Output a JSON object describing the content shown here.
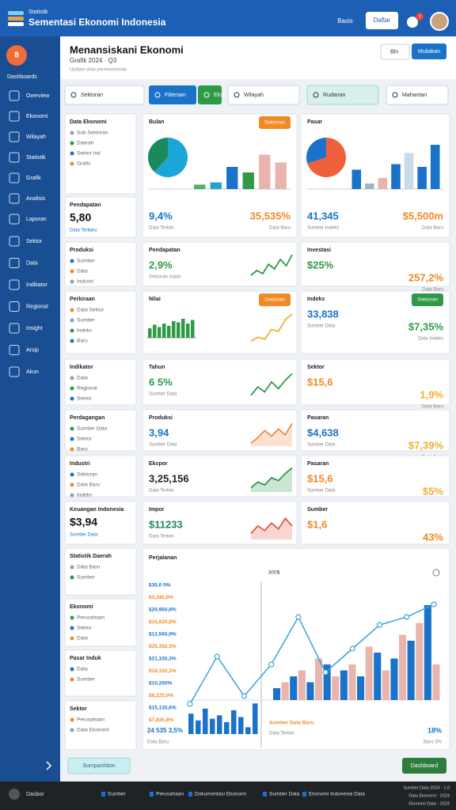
{
  "header": {
    "brand_small": "Statistik",
    "brand": "Sementasi Ekonomi Indonesia",
    "link": "Basis",
    "button": "Daftar",
    "badge": "1"
  },
  "sidebar": {
    "badge": "8",
    "section": "Dashboards",
    "items": [
      "Overview",
      "Ekonomi",
      "Wilayah",
      "Statistik",
      "Grafik",
      "Analisis",
      "Laporan",
      "Sektor",
      "Data",
      "Indikator",
      "Regional",
      "Insight",
      "Arsip",
      "Akun"
    ]
  },
  "page": {
    "title": "Menansiskani Ekonomi",
    "subtitle": "Grafik 2024 · Q3",
    "note": "Update data perekonomian",
    "dropdown": "Bln",
    "button": "Muliakan"
  },
  "filters": [
    "Sektoran",
    "Filtersan",
    "Ekst",
    "Wilayah",
    "Rudanan",
    "Mahantan"
  ],
  "left_cards": [
    {
      "title": "Data Ekonomi",
      "items": [
        "Sub Sektoran",
        "Daerah",
        "Sektor Ind",
        "Grafis"
      ]
    },
    {
      "title": "Pendapatan",
      "value": "5,80",
      "note": "Data Terbaru"
    },
    {
      "title": "Produksi",
      "items": [
        "Sumber",
        "Data",
        "Industri"
      ]
    },
    {
      "title": "Perkiraan",
      "items": [
        "Data Sektor",
        "Sumber",
        "Indeks",
        "Baru"
      ]
    },
    {
      "title": "Indikator",
      "items": [
        "Data",
        "Regional",
        "Sektor"
      ]
    },
    {
      "title": "Perdagangan",
      "items": [
        "Sumber Data",
        "Sektor",
        "Baru"
      ]
    },
    {
      "title": "Industri",
      "items": [
        "Sektoran",
        "Data Baru",
        "Indeks"
      ]
    },
    {
      "title": "Keuangan Indonesia",
      "value": "$3,94",
      "note": "Sumber Data"
    },
    {
      "title": "Statistik Daerah",
      "items": [
        "Data Baru",
        "Sumber"
      ]
    },
    {
      "title": "Ekonomi",
      "items": [
        "Perusahaan",
        "Sektor",
        "Data"
      ]
    },
    {
      "title": "Pasar Induk",
      "items": [
        "Data",
        "Sumber"
      ]
    },
    {
      "title": "Sektor",
      "items": [
        "Perusahaan",
        "Data Ekonomi"
      ]
    }
  ],
  "cards": [
    {
      "title": "Bulan",
      "button": "Sektoran",
      "button_color": "#f08a24",
      "chart": {
        "ylim": [
          0,
          100
        ],
        "pie": [
          62,
          38
        ],
        "pie_colors": [
          "#1aa6d6",
          "#1b8a5a"
        ],
        "bars": [
          8,
          12,
          40,
          30,
          62,
          48
        ],
        "bar_colors": [
          "#4caf6a",
          "#1fa6c9",
          "#1a73c8",
          "#2e9a48",
          "#e8b4ad",
          "#e8b4ad"
        ]
      },
      "value": "9,4%",
      "value_color": "#1a73c8",
      "note": "Data Terkini",
      "value2": "35,535%",
      "value2_color": "#f08a24",
      "note2": "Data Baru"
    },
    {
      "title": "Pasar",
      "chart": {
        "ylim": [
          0,
          100
        ],
        "pie": [
          70,
          30
        ],
        "pie_colors": [
          "#f0603a",
          "#1a73c8"
        ],
        "bars": [
          35,
          10,
          20,
          45,
          65,
          40,
          80
        ],
        "bar_colors": [
          "#1a73c8",
          "#9fb4c8",
          "#e8b4ad",
          "#1a73c8",
          "#c8dbe8",
          "#1a73c8",
          "#1a73c8"
        ]
      },
      "value": "41,345",
      "value_color": "#1a73c8",
      "note": "Sumber Indeks",
      "value2": "$5,500m",
      "value2_color": "#f08a24",
      "note2": "Data Baru"
    },
    {
      "title": "Pendapatan",
      "value": "2,9%",
      "value_color": "#2e9a48",
      "note": "Sektoran Indah",
      "spark": {
        "ylim": [
          0,
          100
        ],
        "values": [
          20,
          35,
          25,
          55,
          40,
          70,
          50,
          85
        ],
        "color": "#2e9a48",
        "fill": false
      }
    },
    {
      "title": "Investasi",
      "value": "$25%",
      "value_color": "#2e9a48",
      "value2": "257,2%",
      "value2_color": "#f08a24",
      "note2": "Data Baru"
    },
    {
      "title": "Nilai",
      "button": "Sektoran",
      "button_color": "#f08a24",
      "bars": {
        "ylim": [
          0,
          100
        ],
        "values": [
          40,
          55,
          45,
          60,
          50,
          70,
          65,
          80,
          60,
          75
        ],
        "color": "#2e9a48"
      },
      "spark": {
        "ylim": [
          0,
          100
        ],
        "values": [
          20,
          30,
          25,
          50,
          45,
          75,
          90
        ],
        "color": "#f0b030",
        "fill": false
      }
    },
    {
      "title": "Indeks",
      "button": "Sektoran",
      "button_color": "#2e9a48",
      "value": "33,838",
      "value_color": "#1a73c8",
      "note": "Sumber Data",
      "value2": "$7,35%",
      "value2_color": "#2e9a48",
      "note2": "Data Indeks"
    },
    {
      "title": "Tahun",
      "value": "6 5%",
      "value_color": "#2e9a48",
      "note": "Sumber Data",
      "spark": {
        "ylim": [
          0,
          100
        ],
        "values": [
          15,
          40,
          25,
          55,
          35,
          60,
          80
        ],
        "color": "#2e9a48",
        "fill": false
      }
    },
    {
      "title": "Sektor",
      "value": "$15,6",
      "value_color": "#f08a24",
      "value2": "1,9%",
      "value2_color": "#f0b030",
      "note2": "Data Baru"
    },
    {
      "title": "Produksi",
      "value": "3,94",
      "value_color": "#1a73c8",
      "note": "Sumber Data",
      "spark": {
        "ylim": [
          0,
          100
        ],
        "values": [
          10,
          30,
          55,
          35,
          60,
          40,
          80
        ],
        "color": "#f08a4a",
        "fill": true
      }
    },
    {
      "title": "Pasaran",
      "value": "$4,638",
      "value_color": "#1a73c8",
      "note": "Sumber Data",
      "value2": "$7,39%",
      "value2_color": "#f0b030",
      "note2": "Data Baru"
    },
    {
      "title": "Ekspor",
      "value": "3,25,156",
      "value_color": "#222222",
      "note": "Data Terkini",
      "spark": {
        "ylim": [
          0,
          100
        ],
        "values": [
          15,
          35,
          25,
          50,
          40,
          65,
          85
        ],
        "color": "#2e9a48",
        "fill": true
      }
    },
    {
      "title": "Pasaran",
      "value": "$15,6",
      "value_color": "#f08a24",
      "note": "Sumber Data",
      "value2": "$5%",
      "value2_color": "#f0b030"
    },
    {
      "title": "Impor",
      "value": "$11233",
      "value_color": "#1b8a5a",
      "note": "Data Terkini",
      "spark": {
        "ylim": [
          0,
          100
        ],
        "values": [
          20,
          45,
          30,
          55,
          35,
          70,
          45
        ],
        "color": "#e05a4a",
        "fill": true
      }
    },
    {
      "title": "Sumber",
      "value": "$1,6",
      "value_color": "#f08a24",
      "value2": "43%",
      "value2_color": "#f08a24"
    }
  ],
  "bottom_chart": {
    "title": "Perjalanan",
    "top_label": "300$",
    "axis_labels": [
      "$30,0 0%",
      "$3,340,8%",
      "$20,950,8%",
      "$15,820,8%",
      "$12,565,9%",
      "$35,355,3%",
      "$21,335,3%",
      "$18,330,3%",
      "$10,200%",
      "$8,225,0%",
      "$15,135,6%",
      "$7,835,8%"
    ],
    "axis_label_colors": [
      "#1a73c8",
      "#f08a24"
    ],
    "ylim": [
      0,
      100
    ],
    "mini_bars": {
      "color": "#1a73c8",
      "values": [
        60,
        40,
        75,
        45,
        55,
        35,
        70,
        50,
        20,
        90
      ]
    },
    "series": [
      {
        "color": "#1a73c8",
        "values": [
          10,
          20,
          15,
          30,
          25,
          20,
          40,
          35,
          50,
          80
        ]
      },
      {
        "color": "#e8b4ad",
        "values": [
          15,
          25,
          35,
          20,
          30,
          45,
          25,
          55,
          65,
          30
        ]
      }
    ],
    "line": {
      "color": "#3aa0e0",
      "values": [
        25,
        55,
        30,
        50,
        80,
        45,
        60,
        75,
        80,
        88
      ]
    },
    "left_value": "24 535 3,5%",
    "left_note": "Data Baru",
    "mid_value": "Sumber Data Baru",
    "mid_note": "Data Terkini",
    "right_value": "18%",
    "right_note": "Baru 3%"
  },
  "actions": {
    "left": "Sumpanhtion",
    "right": "Dashboard"
  },
  "status_bar": {
    "left": "Dasbor",
    "items": [
      "Sumber",
      "Perusahaan",
      "Dokumentasi Ekonomi",
      "Sumber Data",
      "Ekonomi Indonesia Data"
    ],
    "right": [
      "Sumber Data 2024 · 1.0",
      "Data Ekonomi · 2024",
      "Ekonomi Data · 2024"
    ]
  }
}
